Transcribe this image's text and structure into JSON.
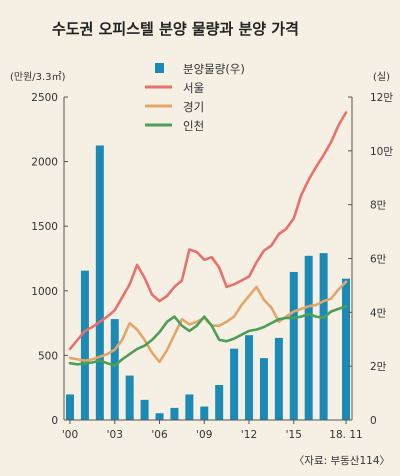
{
  "chart_data": {
    "type": "bar+line",
    "title": "수도권 오피스텔 분양 물량과 분양 가격",
    "left_axis": {
      "unit": "(만원/3.3㎡)",
      "ylim": [
        0,
        2500
      ],
      "ticks": [
        "0",
        "500",
        "1000",
        "1500",
        "2000",
        "2500"
      ]
    },
    "right_axis": {
      "unit": "(실)",
      "ylim": [
        0,
        120000
      ],
      "ticks": [
        "0",
        "2만",
        "4만",
        "6만",
        "8만",
        "10만",
        "12만"
      ]
    },
    "x_ticks": [
      "'00",
      "'03",
      "'06",
      "'09",
      "'12",
      "'15",
      "18. 11"
    ],
    "x": [
      2000,
      2000.5,
      2001,
      2001.5,
      2002,
      2002.5,
      2003,
      2003.5,
      2004,
      2004.5,
      2005,
      2005.5,
      2006,
      2006.5,
      2007,
      2007.5,
      2008,
      2008.5,
      2009,
      2009.5,
      2010,
      2010.5,
      2011,
      2011.5,
      2012,
      2012.5,
      2013,
      2013.5,
      2014,
      2014.5,
      2015,
      2015.5,
      2016,
      2016.5,
      2017,
      2017.5,
      2018,
      2018.5
    ],
    "bar_series": {
      "name": "분양물량(우)",
      "color": "#1b8bb5",
      "x": [
        2000,
        2001,
        2002,
        2003,
        2004,
        2005,
        2006,
        2007,
        2008,
        2009,
        2010,
        2011,
        2012,
        2013,
        2014,
        2015,
        2016,
        2017,
        2018.5
      ],
      "values": [
        9500,
        55500,
        102000,
        37500,
        16500,
        7500,
        2500,
        4500,
        9500,
        5000,
        13000,
        26500,
        31500,
        23000,
        30500,
        55000,
        61000,
        62000,
        52500
      ]
    },
    "series": [
      {
        "name": "서울",
        "color": "#e8716c",
        "values": [
          550,
          620,
          690,
          720,
          760,
          800,
          850,
          950,
          1050,
          1200,
          1100,
          970,
          920,
          960,
          1030,
          1080,
          1320,
          1300,
          1240,
          1260,
          1180,
          1030,
          1050,
          1080,
          1110,
          1220,
          1310,
          1350,
          1440,
          1480,
          1560,
          1740,
          1860,
          1960,
          2050,
          2150,
          2280,
          2380
        ]
      },
      {
        "name": "경기",
        "color": "#e3a56a",
        "values": [
          480,
          470,
          460,
          470,
          490,
          510,
          545,
          620,
          750,
          700,
          620,
          520,
          450,
          540,
          660,
          780,
          740,
          760,
          790,
          730,
          730,
          760,
          800,
          890,
          960,
          1030,
          930,
          870,
          760,
          800,
          840,
          860,
          880,
          890,
          920,
          940,
          1010,
          1070
        ]
      },
      {
        "name": "인천",
        "color": "#4e9e57",
        "values": [
          440,
          430,
          440,
          445,
          460,
          440,
          420,
          470,
          510,
          550,
          575,
          620,
          680,
          760,
          800,
          730,
          690,
          730,
          800,
          730,
          620,
          610,
          630,
          660,
          690,
          700,
          720,
          750,
          780,
          790,
          790,
          800,
          820,
          800,
          790,
          840,
          860,
          880
        ]
      }
    ],
    "legend_position": "top-center",
    "grid": false
  },
  "source": "〈자료: 부동산114〉"
}
